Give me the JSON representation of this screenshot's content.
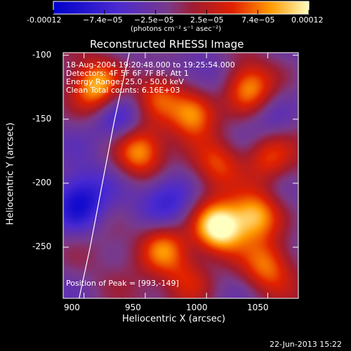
{
  "chart_data": {
    "type": "heatmap",
    "title": "Reconstructed RHESSI Image",
    "xlabel": "Heliocentric X (arcsec)",
    "ylabel": "Heliocentric Y (arcsec)",
    "xlim": [
      883,
      1075
    ],
    "ylim": [
      -290,
      -98
    ],
    "xticks": [
      900,
      950,
      1000,
      1050
    ],
    "yticks": [
      -100,
      -150,
      -200,
      -250
    ],
    "colorbar": {
      "ticks": [
        "-0.00012",
        "−7.4e−05",
        "−2.5e−05",
        "2.5e−05",
        "7.4e−05",
        "0.00012"
      ],
      "units": "(photons cm⁻² s⁻¹ asec⁻²)",
      "range": [
        -0.00012,
        0.00012
      ]
    },
    "annotations": [
      "18‑Aug‑2004 19:20:48.000 to 19:25:54.000",
      "Detectors: 4F 5F 6F 7F 8F, Att 1",
      "Energy Range: 25.0 - 50.0 keV",
      "Clean     Total counts: 6.16E+03"
    ],
    "peak_label": "Position of Peak = [993,-149]",
    "limb_curve": [
      [
        937,
        -98
      ],
      [
        925,
        -150
      ],
      [
        915,
        -200
      ],
      [
        905,
        -250
      ],
      [
        896,
        -290
      ]
    ],
    "bright_blobs": [
      {
        "x": 1010,
        "y": -235,
        "amp": 1.0
      },
      {
        "x": 1040,
        "y": -225,
        "amp": 0.8
      },
      {
        "x": 990,
        "y": -145,
        "amp": 0.9
      },
      {
        "x": 945,
        "y": -175,
        "amp": 0.75
      },
      {
        "x": 910,
        "y": -125,
        "amp": 0.75
      },
      {
        "x": 1035,
        "y": -125,
        "amp": 0.7
      },
      {
        "x": 960,
        "y": -130,
        "amp": 0.55
      },
      {
        "x": 1010,
        "y": -185,
        "amp": 0.55
      },
      {
        "x": 1050,
        "y": -180,
        "amp": 0.55
      },
      {
        "x": 965,
        "y": -250,
        "amp": 0.7
      },
      {
        "x": 1050,
        "y": -265,
        "amp": 0.55
      },
      {
        "x": 985,
        "y": -275,
        "amp": 0.45
      }
    ],
    "dark_blobs": [
      {
        "x": 895,
        "y": -215,
        "amp": 0.9
      },
      {
        "x": 930,
        "y": -150,
        "amp": 0.6
      },
      {
        "x": 970,
        "y": -210,
        "amp": 0.6
      },
      {
        "x": 1000,
        "y": -115,
        "amp": 0.45
      },
      {
        "x": 1050,
        "y": -150,
        "amp": 0.4
      }
    ]
  },
  "footer": {
    "timestamp": "22-Jun-2013 15:22"
  }
}
